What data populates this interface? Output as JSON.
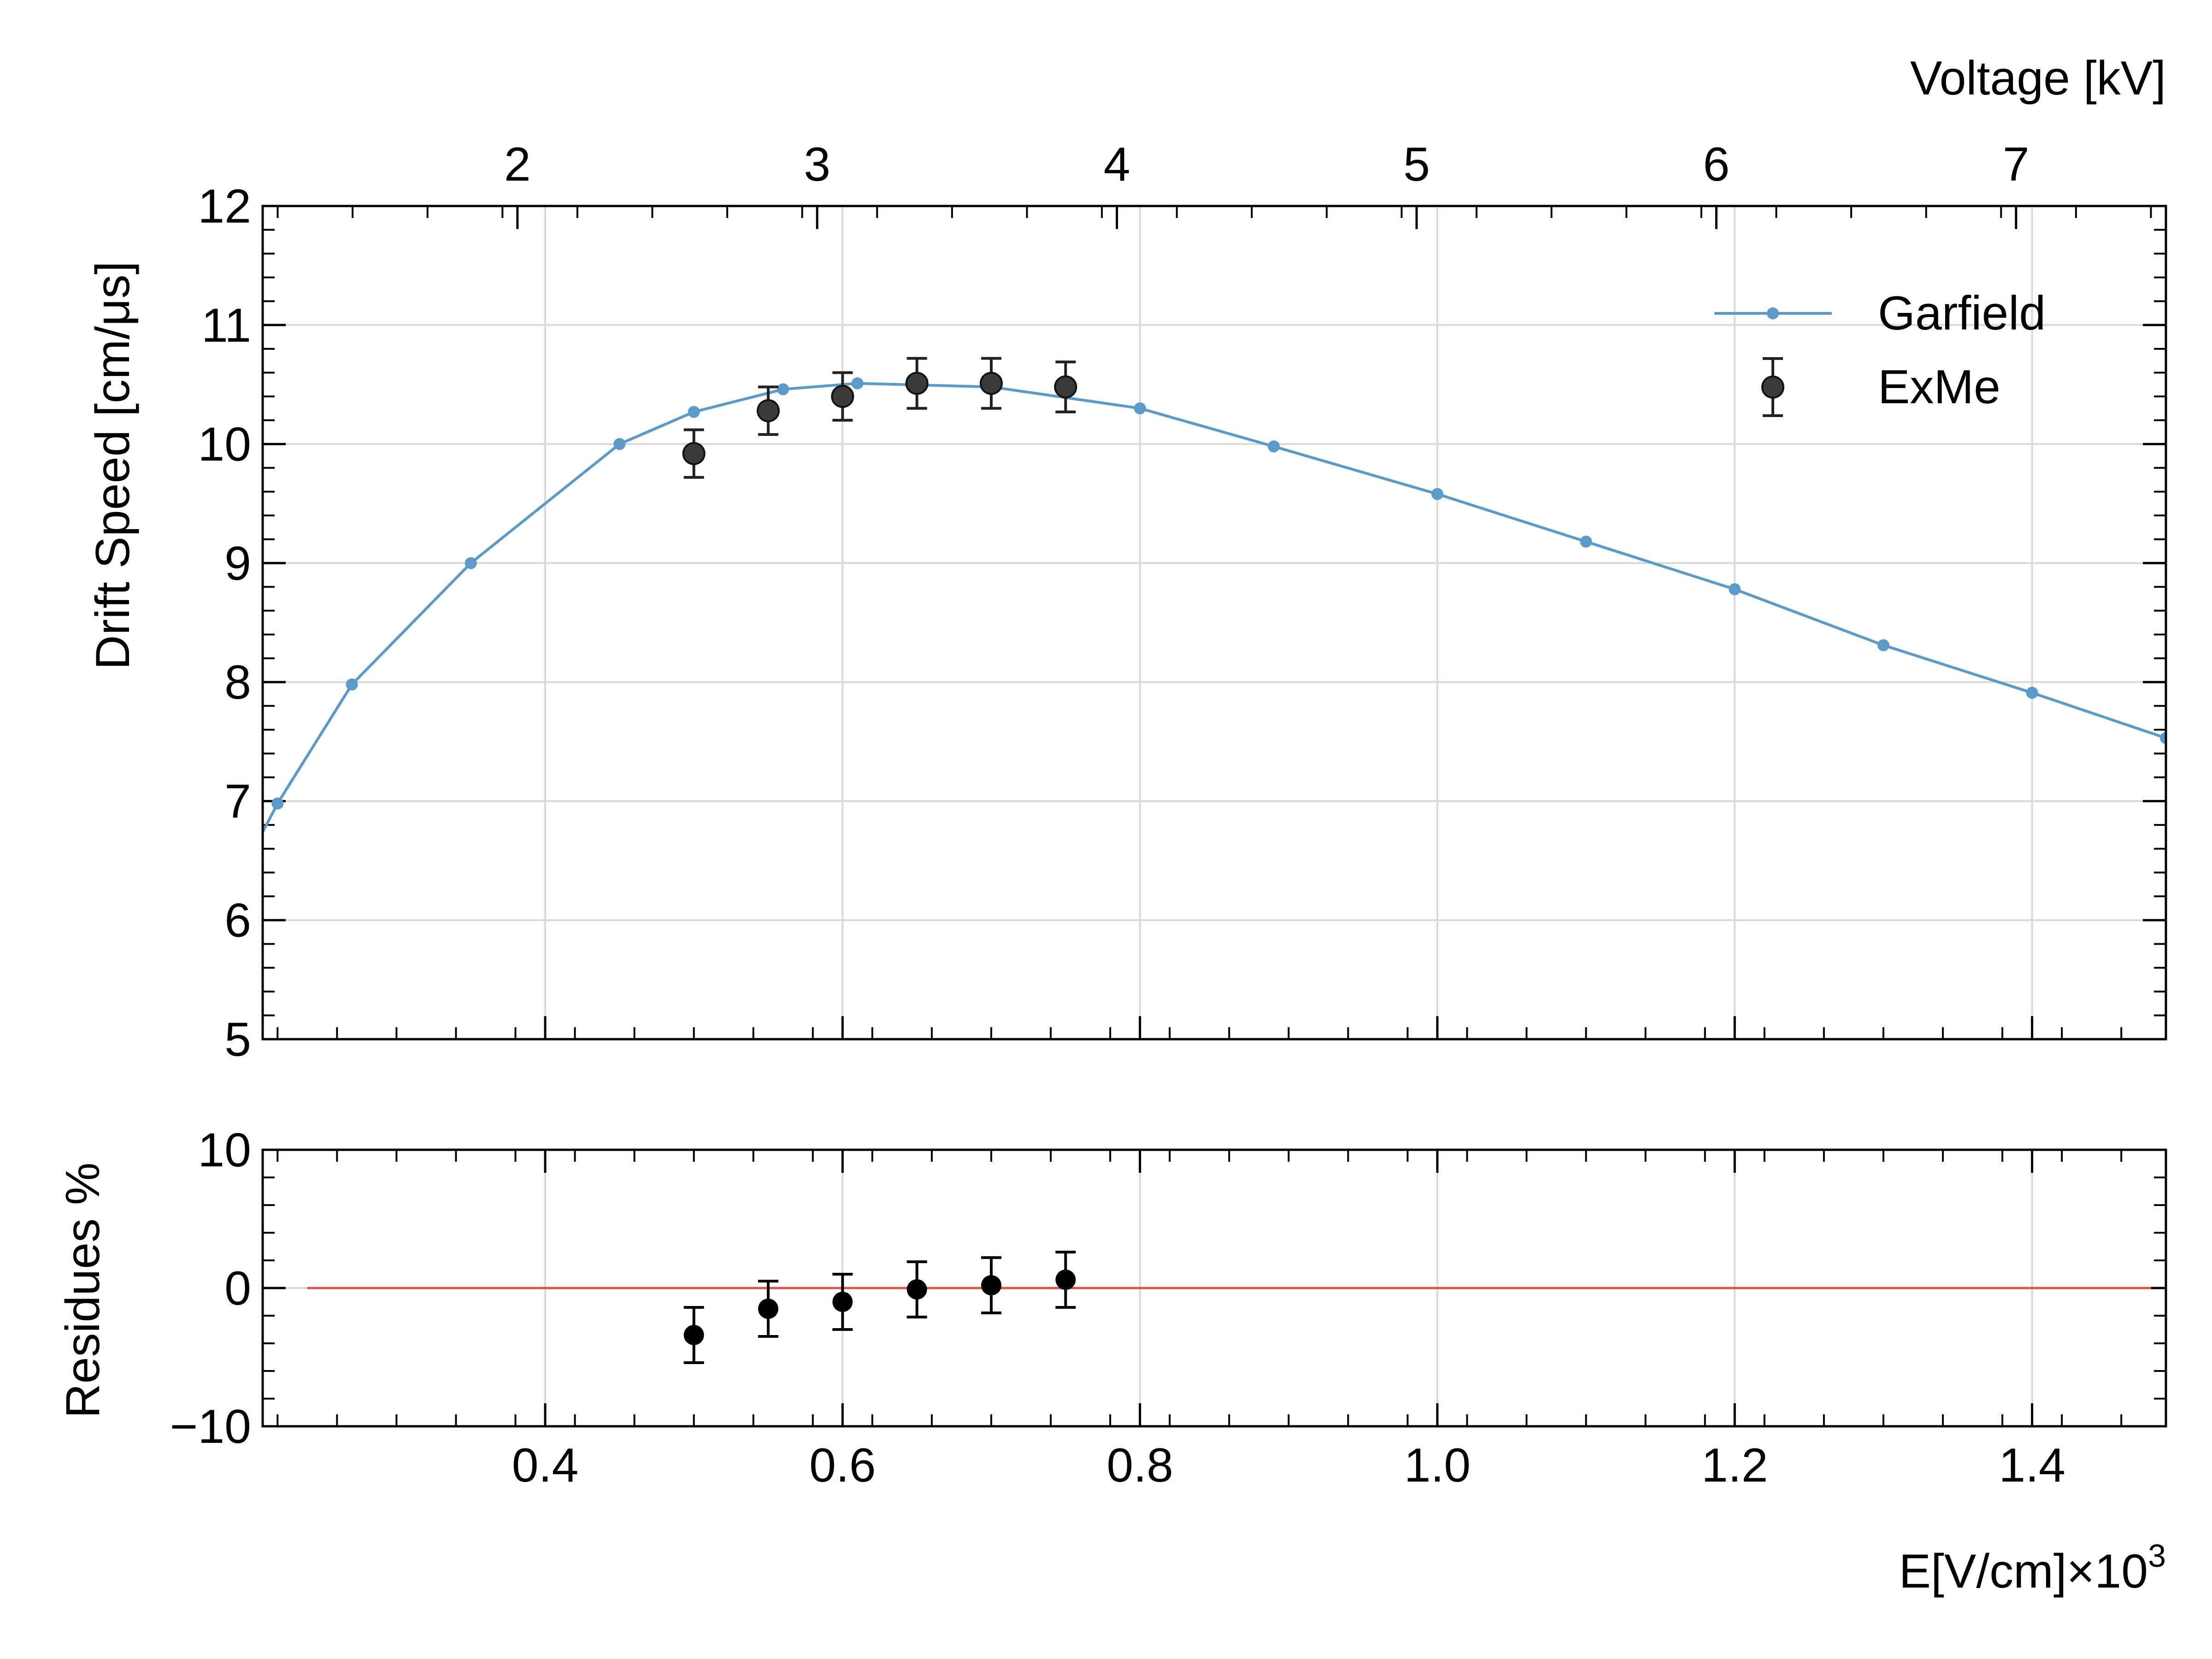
{
  "chart_data": [
    {
      "type": "line",
      "ylabel": "Drift Speed [cm/μs]",
      "top_xlabel": "Voltage [kV]",
      "xlim": [
        0.21,
        1.49
      ],
      "ylim": [
        5,
        12
      ],
      "yticks": [
        5,
        6,
        7,
        8,
        9,
        10,
        11,
        12
      ],
      "top_xticks": [
        2,
        3,
        4,
        5,
        6,
        7
      ],
      "top_xlim": [
        1.15,
        7.5
      ],
      "grid": true,
      "legend_position": "top-right",
      "series": [
        {
          "name": "Garfield",
          "color": "#5b9ac9",
          "x": [
            0.2,
            0.22,
            0.27,
            0.35,
            0.45,
            0.5,
            0.56,
            0.61,
            0.7,
            0.8,
            0.89,
            1.0,
            1.1,
            1.2,
            1.3,
            1.4,
            1.49
          ],
          "y": [
            6.5,
            6.98,
            7.98,
            9.0,
            10.0,
            10.27,
            10.46,
            10.51,
            10.48,
            10.3,
            9.98,
            9.58,
            9.18,
            8.78,
            8.31,
            7.91,
            7.53
          ]
        },
        {
          "name": "ExMe",
          "color": "#222222",
          "x": [
            0.5,
            0.55,
            0.6,
            0.65,
            0.7,
            0.75
          ],
          "y": [
            9.92,
            10.28,
            10.4,
            10.51,
            10.51,
            10.48
          ],
          "yerr": [
            0.2,
            0.2,
            0.2,
            0.21,
            0.21,
            0.21
          ]
        }
      ]
    },
    {
      "type": "scatter",
      "ylabel": "Residues %",
      "xlabel_main": "E[V/cm]×10",
      "xlabel_exp": "3",
      "xlim": [
        0.21,
        1.49
      ],
      "ylim": [
        -10,
        10
      ],
      "yticks": [
        -10,
        0,
        10
      ],
      "ytick_labels": [
        "−10",
        "0",
        "10"
      ],
      "xticks": [
        0.4,
        0.6,
        0.8,
        1.0,
        1.2,
        1.4
      ],
      "xtick_labels": [
        "0.4",
        "0.6",
        "0.8",
        "1.0",
        "1.2",
        "1.4"
      ],
      "grid": true,
      "reference_line": {
        "y": 0,
        "x_range": [
          0.24,
          1.48
        ],
        "color": "#d9534f"
      },
      "series": [
        {
          "name": "ExMe",
          "color": "#000000",
          "x": [
            0.5,
            0.55,
            0.6,
            0.65,
            0.7,
            0.75
          ],
          "y": [
            -3.4,
            -1.5,
            -1.0,
            -0.1,
            0.2,
            0.6
          ],
          "yerr": [
            2.0,
            2.0,
            2.0,
            2.0,
            2.0,
            2.0
          ]
        }
      ]
    }
  ]
}
